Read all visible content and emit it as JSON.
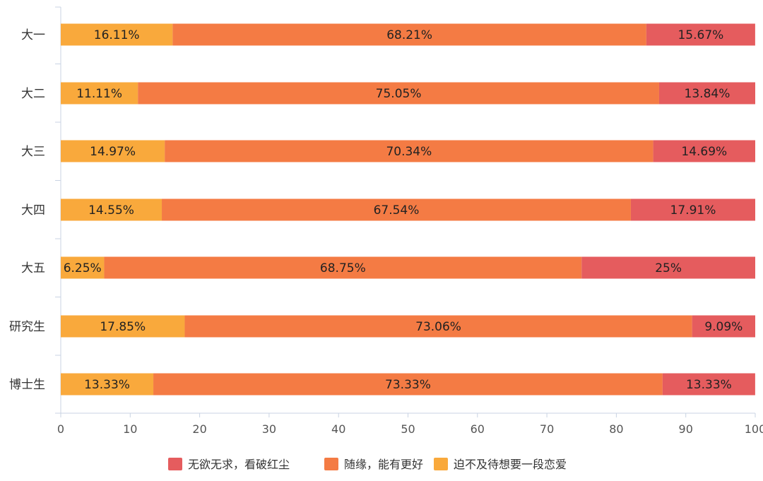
{
  "chart_data": {
    "type": "bar",
    "orientation": "horizontal",
    "stacked": true,
    "categories": [
      "大一",
      "大二",
      "大三",
      "大四",
      "大五",
      "研究生",
      "博士生"
    ],
    "series": [
      {
        "name": "迫不及待想要一段恋爱",
        "color": "#F9A93C",
        "values": [
          16.11,
          11.11,
          14.97,
          14.55,
          6.25,
          17.85,
          13.33
        ],
        "labels": [
          "16.11%",
          "11.11%",
          "14.97%",
          "14.55%",
          "6.25%",
          "17.85%",
          "13.33%"
        ]
      },
      {
        "name": "随缘，能有更好",
        "color": "#F47B44",
        "values": [
          68.21,
          75.05,
          70.34,
          67.54,
          68.75,
          73.06,
          73.33
        ],
        "labels": [
          "68.21%",
          "75.05%",
          "70.34%",
          "67.54%",
          "68.75%",
          "73.06%",
          "73.33%"
        ]
      },
      {
        "name": "无欲无求，看破红尘",
        "color": "#E55C5E",
        "values": [
          15.67,
          13.84,
          14.69,
          17.91,
          25,
          9.09,
          13.33
        ],
        "labels": [
          "15.67%",
          "13.84%",
          "14.69%",
          "17.91%",
          "25%",
          "9.09%",
          "13.33%"
        ]
      }
    ],
    "legend_order": [
      "无欲无求，看破红尘",
      "随缘，能有更好",
      "迫不及待想要一段恋爱"
    ],
    "xlim": [
      0,
      100
    ],
    "xticks": [
      0,
      10,
      20,
      30,
      40,
      50,
      60,
      70,
      80,
      90,
      100
    ],
    "grid": false,
    "legend_position": "bottom-center"
  }
}
